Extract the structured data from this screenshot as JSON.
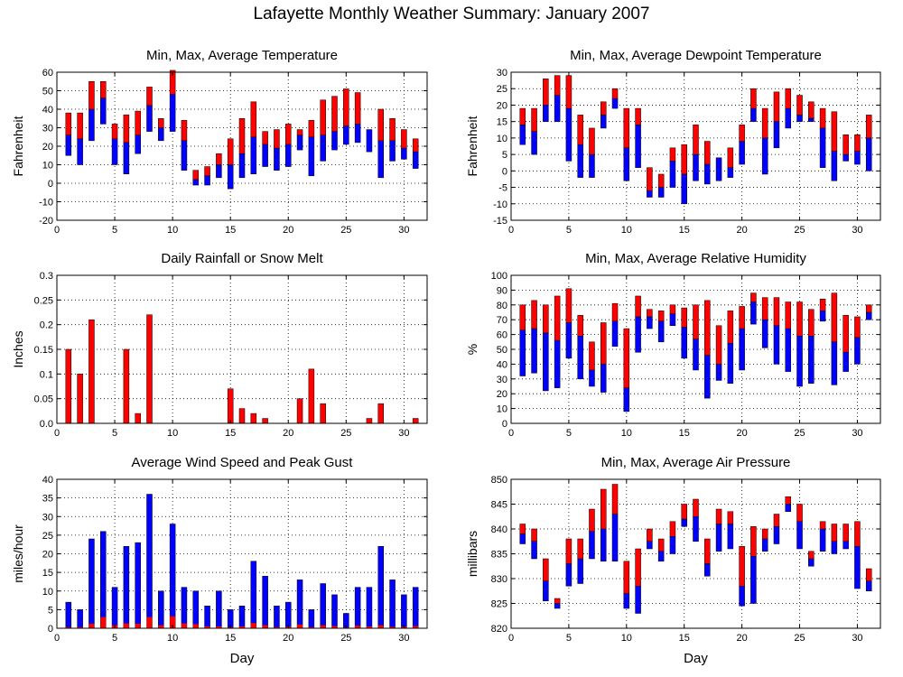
{
  "title": "Lafayette Monthly Weather Summary: January 2007",
  "colors": {
    "max_bar": "#ff0000",
    "min_bar": "#0000ff",
    "grid": "#000000"
  },
  "chart_data": [
    {
      "id": "temperature",
      "type": "bar",
      "title": "Min, Max, Average Temperature",
      "xlabel": "",
      "ylabel": "Fahrenheit",
      "xlim": [
        0,
        32
      ],
      "xticks": [
        0,
        5,
        10,
        15,
        20,
        25,
        30
      ],
      "ylim": [
        -20,
        60
      ],
      "yticks": [
        -20,
        -10,
        0,
        10,
        20,
        30,
        40,
        50,
        60
      ],
      "grid": true,
      "x": [
        1,
        2,
        3,
        4,
        5,
        6,
        7,
        8,
        9,
        10,
        11,
        12,
        13,
        14,
        15,
        16,
        17,
        18,
        19,
        20,
        21,
        22,
        23,
        24,
        25,
        26,
        27,
        28,
        29,
        30,
        31
      ],
      "min": [
        15,
        10,
        23,
        32,
        10,
        5,
        16,
        28,
        23,
        28,
        7,
        -1,
        -1,
        3,
        -3,
        3,
        5,
        9,
        7,
        9,
        18,
        4,
        12,
        18,
        21,
        22,
        17,
        3,
        12,
        13,
        8
      ],
      "avg": [
        26,
        24,
        40,
        46,
        24,
        22,
        26,
        42,
        30,
        48,
        23,
        2,
        4,
        10,
        10,
        16,
        25,
        21,
        19,
        21,
        26,
        25,
        26,
        28,
        31,
        32,
        29,
        23,
        23,
        19,
        17
      ],
      "max": [
        38,
        38,
        55,
        55,
        32,
        37,
        39,
        52,
        35,
        61,
        34,
        7,
        9,
        16,
        24,
        35,
        44,
        28,
        29,
        32,
        29,
        34,
        45,
        47,
        51,
        49,
        25,
        40,
        35,
        29,
        24
      ]
    },
    {
      "id": "dewpoint",
      "type": "bar",
      "title": "Min, Max, Average Dewpoint Temperature",
      "xlabel": "",
      "ylabel": "Fahrenheit",
      "xlim": [
        0,
        32
      ],
      "xticks": [
        0,
        5,
        10,
        15,
        20,
        25,
        30
      ],
      "ylim": [
        -15,
        30
      ],
      "yticks": [
        -15,
        -10,
        -5,
        0,
        5,
        10,
        15,
        20,
        25,
        30
      ],
      "grid": true,
      "x": [
        1,
        2,
        3,
        4,
        5,
        6,
        7,
        8,
        9,
        10,
        11,
        12,
        13,
        14,
        15,
        16,
        17,
        18,
        19,
        20,
        21,
        22,
        23,
        24,
        25,
        26,
        27,
        28,
        29,
        30,
        31
      ],
      "min": [
        8,
        5,
        15,
        15,
        3,
        -2,
        -2,
        13,
        19,
        -3,
        1,
        -8,
        -8,
        -5,
        -10,
        -3,
        -4,
        -3,
        -2,
        2,
        15,
        -1,
        7,
        13,
        15,
        15,
        1,
        -3,
        3,
        2,
        0
      ],
      "avg": [
        14,
        12,
        20,
        23,
        19,
        8,
        5,
        17,
        22,
        7,
        14,
        -6,
        -5,
        3,
        -1,
        5,
        2,
        4,
        1,
        9,
        19,
        10,
        15,
        19,
        17,
        16,
        13,
        6,
        5,
        6,
        10
      ],
      "max": [
        19,
        19,
        28,
        29,
        29,
        17,
        13,
        21,
        25,
        19,
        19,
        1,
        -1,
        7,
        8,
        14,
        9,
        4,
        7,
        14,
        25,
        19,
        24,
        25,
        23,
        21,
        19,
        18,
        11,
        11,
        17
      ]
    },
    {
      "id": "rainfall",
      "type": "bar",
      "title": "Daily Rainfall or Snow Melt",
      "xlabel": "",
      "ylabel": "Inches",
      "xlim": [
        0,
        32
      ],
      "xticks": [
        0,
        5,
        10,
        15,
        20,
        25,
        30
      ],
      "ylim": [
        0,
        0.3
      ],
      "yticks": [
        "0.0",
        "0.05",
        "0.1",
        "0.15",
        "0.2",
        "0.25",
        "0.3"
      ],
      "grid": true,
      "x": [
        1,
        2,
        3,
        4,
        5,
        6,
        7,
        8,
        9,
        10,
        11,
        12,
        13,
        14,
        15,
        16,
        17,
        18,
        19,
        20,
        21,
        22,
        23,
        24,
        25,
        26,
        27,
        28,
        29,
        30,
        31
      ],
      "values": [
        0.15,
        0.1,
        0.21,
        0,
        0,
        0.15,
        0.02,
        0.22,
        0,
        0,
        0,
        0,
        0,
        0,
        0.07,
        0.03,
        0.02,
        0.01,
        0,
        0,
        0.05,
        0.11,
        0.04,
        0,
        0,
        0,
        0.01,
        0.04,
        0,
        0,
        0.01
      ]
    },
    {
      "id": "humidity",
      "type": "bar",
      "title": "Min, Max, Average Relative Humidity",
      "xlabel": "",
      "ylabel": "%",
      "xlim": [
        0,
        32
      ],
      "xticks": [
        0,
        5,
        10,
        15,
        20,
        25,
        30
      ],
      "ylim": [
        0,
        100
      ],
      "yticks": [
        0,
        10,
        20,
        30,
        40,
        50,
        60,
        70,
        80,
        90,
        100
      ],
      "grid": true,
      "x": [
        1,
        2,
        3,
        4,
        5,
        6,
        7,
        8,
        9,
        10,
        11,
        12,
        13,
        14,
        15,
        16,
        17,
        18,
        19,
        20,
        21,
        22,
        23,
        24,
        25,
        26,
        27,
        28,
        29,
        30,
        31
      ],
      "min": [
        32,
        34,
        22,
        24,
        44,
        30,
        25,
        21,
        52,
        8,
        48,
        64,
        55,
        66,
        44,
        36,
        17,
        29,
        27,
        36,
        67,
        51,
        40,
        35,
        25,
        27,
        69,
        26,
        35,
        40,
        70
      ],
      "avg": [
        63,
        64,
        61,
        56,
        68,
        59,
        36,
        40,
        69,
        24,
        72,
        72,
        69,
        74,
        65,
        57,
        46,
        40,
        54,
        64,
        82,
        70,
        66,
        64,
        59,
        59,
        76,
        55,
        48,
        58,
        75
      ],
      "max": [
        80,
        83,
        80,
        86,
        91,
        73,
        55,
        68,
        81,
        64,
        86,
        77,
        76,
        80,
        78,
        80,
        83,
        66,
        76,
        79,
        88,
        85,
        85,
        82,
        82,
        77,
        84,
        88,
        73,
        72,
        80
      ]
    },
    {
      "id": "wind",
      "type": "bar",
      "title": "Average Wind Speed and Peak Gust",
      "xlabel": "Day",
      "ylabel": "miles/hour",
      "xlim": [
        0,
        32
      ],
      "xticks": [
        0,
        5,
        10,
        15,
        20,
        25,
        30
      ],
      "ylim": [
        0,
        40
      ],
      "yticks": [
        0,
        5,
        10,
        15,
        20,
        25,
        30,
        35,
        40
      ],
      "grid": true,
      "x": [
        1,
        2,
        3,
        4,
        5,
        6,
        7,
        8,
        9,
        10,
        11,
        12,
        13,
        14,
        15,
        16,
        17,
        18,
        19,
        20,
        21,
        22,
        23,
        24,
        25,
        26,
        27,
        28,
        29,
        30,
        31
      ],
      "gust": [
        7,
        5,
        24,
        26,
        11,
        22,
        23,
        36,
        10,
        28,
        11,
        10,
        6,
        10,
        5,
        6,
        18,
        14,
        6,
        7,
        13,
        5,
        12,
        9,
        4,
        11,
        11,
        22,
        13,
        9,
        11
      ],
      "avg": [
        0.3,
        0.3,
        1.2,
        3,
        0.8,
        1.3,
        1.2,
        3,
        0.8,
        3.2,
        1.3,
        1.1,
        0.5,
        0.5,
        0.3,
        0.5,
        1.4,
        0.8,
        0.3,
        0.4,
        1,
        0.3,
        0.8,
        0.6,
        0.2,
        0.7,
        0.5,
        0.8,
        0.4,
        0.4,
        0.6
      ]
    },
    {
      "id": "pressure",
      "type": "bar",
      "title": "Min, Max, Average Air Pressure",
      "xlabel": "Day",
      "ylabel": "millibars",
      "xlim": [
        0,
        32
      ],
      "xticks": [
        0,
        5,
        10,
        15,
        20,
        25,
        30
      ],
      "ylim": [
        820,
        850
      ],
      "yticks": [
        820,
        825,
        830,
        835,
        840,
        845,
        850
      ],
      "grid": true,
      "x": [
        1,
        2,
        3,
        4,
        5,
        6,
        7,
        8,
        9,
        10,
        11,
        12,
        13,
        14,
        15,
        16,
        17,
        18,
        19,
        20,
        21,
        22,
        23,
        24,
        25,
        26,
        27,
        28,
        29,
        30,
        31
      ],
      "min": [
        837,
        834,
        825.5,
        824,
        828.5,
        829,
        834,
        833.5,
        833.5,
        824,
        823,
        836,
        833.5,
        835,
        840.5,
        837.5,
        830.5,
        835.5,
        836,
        824.5,
        825,
        835.5,
        837,
        843.5,
        836,
        832.5,
        835.5,
        835,
        836,
        828,
        827.5
      ],
      "avg": [
        839,
        837.5,
        829.5,
        825,
        833,
        834,
        839.5,
        840,
        843,
        827,
        828.5,
        837.5,
        835.5,
        838.5,
        842,
        842.5,
        833,
        841,
        841,
        828.5,
        834.5,
        838,
        840.5,
        845,
        841.5,
        834,
        840,
        837.5,
        837.5,
        836.5,
        829.5
      ],
      "max": [
        841,
        840,
        834,
        826,
        838,
        838,
        844,
        848,
        849,
        833.5,
        836,
        840,
        838,
        841.5,
        845,
        846,
        838,
        844,
        843.5,
        836.5,
        840.5,
        840,
        843,
        846.5,
        845,
        835.5,
        841.5,
        841,
        841,
        841.5,
        832
      ]
    }
  ]
}
